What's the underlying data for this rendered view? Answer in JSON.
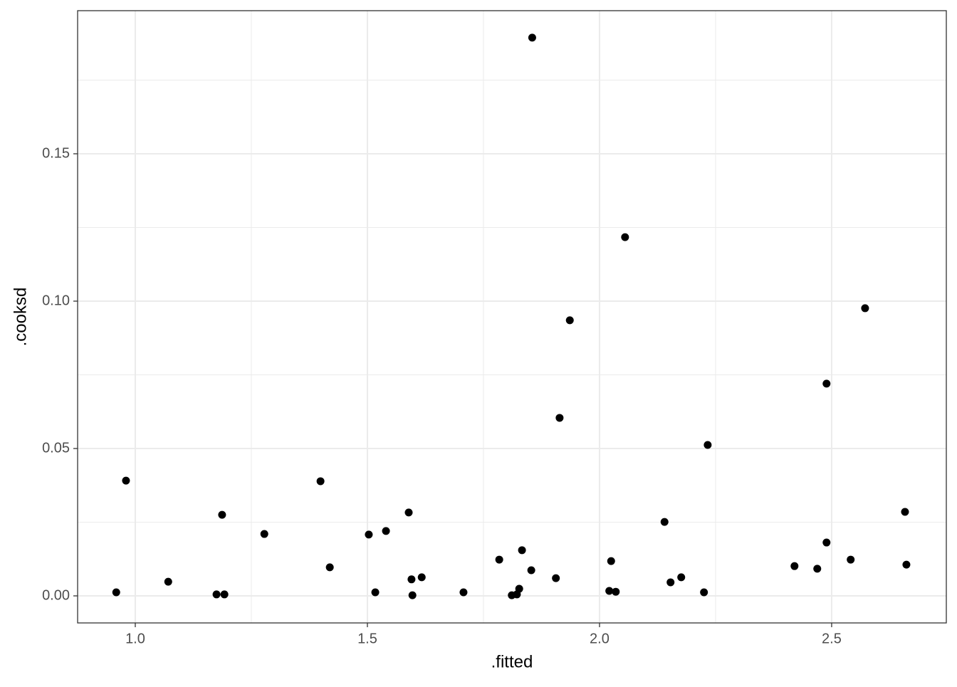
{
  "chart_data": {
    "type": "scatter",
    "x_label": ".fitted",
    "y_label": ".cooksd",
    "x": [
      0.959,
      0.98,
      1.071,
      1.175,
      1.187,
      1.192,
      1.278,
      1.399,
      1.419,
      1.503,
      1.517,
      1.54,
      1.589,
      1.595,
      1.597,
      1.617,
      1.707,
      1.784,
      1.811,
      1.822,
      1.827,
      1.833,
      1.853,
      1.855,
      1.906,
      1.914,
      1.936,
      2.021,
      2.025,
      2.035,
      2.055,
      2.14,
      2.153,
      2.176,
      2.225,
      2.233,
      2.42,
      2.469,
      2.489,
      2.489,
      2.541,
      2.572,
      2.658,
      2.661
    ],
    "y": [
      0.0012,
      0.0391,
      0.0048,
      0.0005,
      0.0275,
      0.0005,
      0.021,
      0.0389,
      0.0097,
      0.0208,
      0.0012,
      0.022,
      0.0283,
      0.0056,
      0.0002,
      0.0063,
      0.0012,
      0.0123,
      0.0002,
      0.0005,
      0.0024,
      0.0155,
      0.0087,
      0.1894,
      0.006,
      0.0604,
      0.0935,
      0.0017,
      0.0118,
      0.0014,
      0.1217,
      0.0251,
      0.0046,
      0.0063,
      0.0012,
      0.0512,
      0.0101,
      0.0092,
      0.072,
      0.0181,
      0.0123,
      0.0976,
      0.0285,
      0.0106
    ],
    "color": "#000000",
    "xlim": [
      0.8758,
      2.747
    ],
    "ylim": [
      -0.00918,
      0.19855
    ],
    "xticks": [
      {
        "value": 1,
        "label": "1.0"
      },
      1.5,
      {
        "value": 2,
        "label": "2.0"
      },
      2.5
    ],
    "yticks": [
      {
        "value": 0,
        "label": "0.00"
      },
      0.05,
      {
        "value": 0.1,
        "label": "0.10"
      },
      0.15
    ],
    "x_minor_grid": [
      1.25,
      1.75,
      2.25
    ],
    "y_minor_grid": [
      0.025,
      0.075,
      0.125,
      0.175
    ],
    "grid": true
  }
}
